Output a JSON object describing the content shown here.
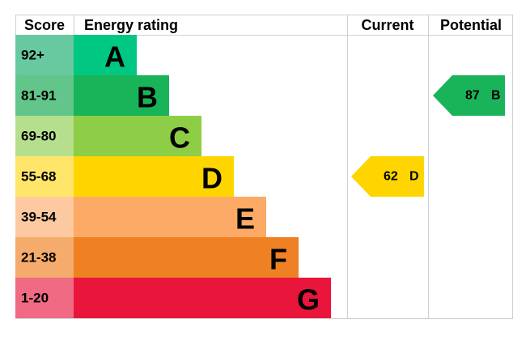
{
  "chart_data": {
    "type": "energy-rating",
    "headers": [
      "Score",
      "Energy rating",
      "Current",
      "Potential"
    ],
    "bands": [
      {
        "score": "92+",
        "letter": "A",
        "color": "#00c781",
        "score_color": "#68c9a0"
      },
      {
        "score": "81-91",
        "letter": "B",
        "color": "#19b459",
        "score_color": "#62c68a"
      },
      {
        "score": "69-80",
        "letter": "C",
        "color": "#8dce46",
        "score_color": "#b6df8d"
      },
      {
        "score": "55-68",
        "letter": "D",
        "color": "#ffd500",
        "score_color": "#ffe66a"
      },
      {
        "score": "39-54",
        "letter": "E",
        "color": "#fcaa65",
        "score_color": "#fdc9a1"
      },
      {
        "score": "21-38",
        "letter": "F",
        "color": "#ef8023",
        "score_color": "#f5ab6c"
      },
      {
        "score": "1-20",
        "letter": "G",
        "color": "#e9153b",
        "score_color": "#ef6a82"
      }
    ],
    "current": {
      "value": 62,
      "letter": "D",
      "color": "#ffd500"
    },
    "potential": {
      "value": 87,
      "letter": "B",
      "color": "#19b459"
    }
  }
}
